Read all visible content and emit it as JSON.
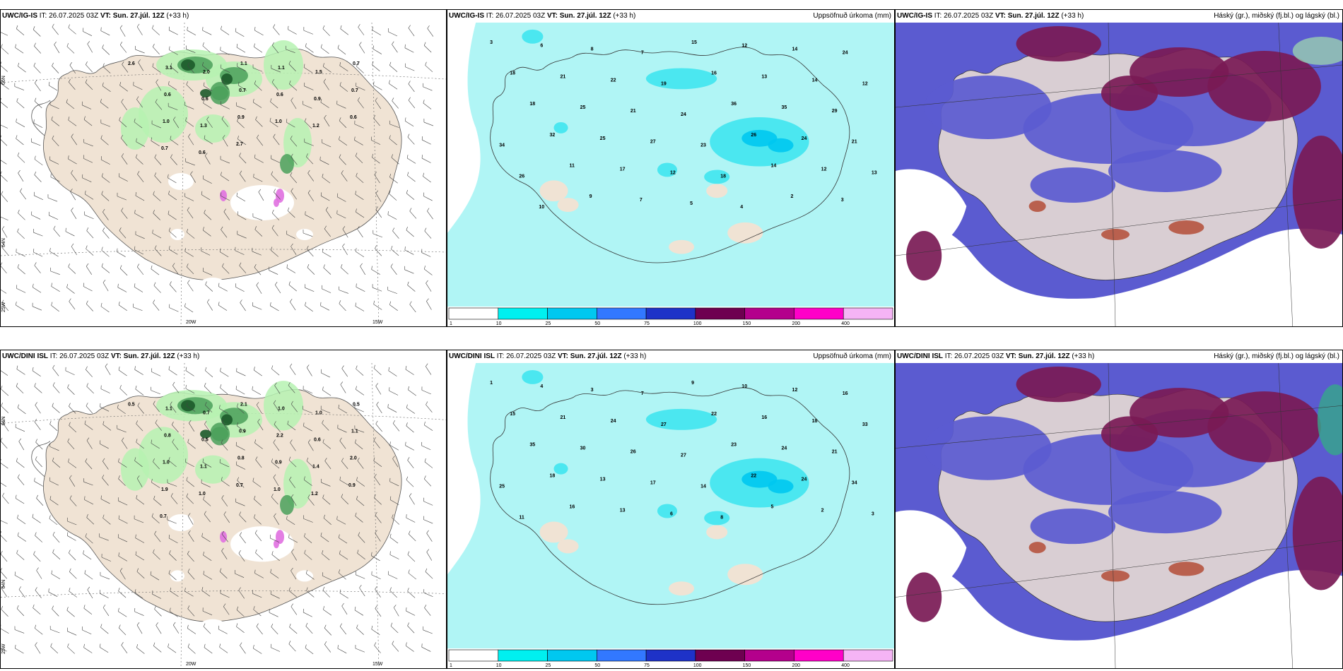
{
  "common": {
    "it_label": "IT:",
    "it_value": "26.07.2025 03Z",
    "vt_label": "VT:",
    "vt_value": "Sun. 27.júl. 12Z",
    "lead": "(+33 h)"
  },
  "rows": [
    {
      "model": "UWC/IG-IS"
    },
    {
      "model": "UWC/DINI ISL"
    }
  ],
  "panel_titles": {
    "precip": "Uppsöfnuð úrkoma (mm)",
    "cloud": "Háský (gr.), miðský (fj.bl.) og lágský (bl.)"
  },
  "axis_labels": {
    "lat_66": "66N",
    "lat_64": "64N",
    "lon_25": "25W",
    "lon_20": "20W",
    "lon_15": "15W"
  },
  "colorbar": {
    "ticks": [
      "1",
      "10",
      "25",
      "50",
      "75",
      "100",
      "150",
      "200",
      "400"
    ],
    "colors": [
      "#ffffff",
      "#00f0f0",
      "#00c8f0",
      "#3278ff",
      "#1e32c8",
      "#6e0050",
      "#b4008c",
      "#ff00c8",
      "#f5b4f5"
    ]
  },
  "wind_values_top": [
    "2.6",
    "3.1",
    "2.0",
    "1.1",
    "1.1",
    "1.5",
    "0.7",
    "0.6",
    "0.6",
    "0.7",
    "0.6",
    "0.9",
    "0.7",
    "1.0",
    "1.3",
    "0.9",
    "1.0",
    "1.2",
    "0.6",
    "0.7",
    "0.6",
    "2.7"
  ],
  "wind_values_bottom": [
    "0.5",
    "1.1",
    "0.7",
    "2.1",
    "1.0",
    "1.0",
    "0.5",
    "0.8",
    "0.5",
    "0.9",
    "2.2",
    "0.6",
    "1.1",
    "1.0",
    "1.1",
    "0.8",
    "0.9",
    "1.4",
    "2.0",
    "1.9",
    "1.0",
    "0.7",
    "1.0",
    "1.2",
    "0.9",
    "0.7"
  ],
  "precip_values_top": [
    "3",
    "6",
    "8",
    "7",
    "15",
    "12",
    "14",
    "24",
    "18",
    "21",
    "22",
    "19",
    "16",
    "13",
    "14",
    "12",
    "18",
    "25",
    "21",
    "24",
    "36",
    "35",
    "29",
    "34",
    "32",
    "25",
    "27",
    "23",
    "26",
    "24",
    "21",
    "26",
    "11",
    "17",
    "12",
    "18",
    "14",
    "12",
    "13",
    "10",
    "9",
    "7",
    "5",
    "4",
    "2",
    "3"
  ],
  "precip_values_bottom": [
    "1",
    "4",
    "3",
    "7",
    "9",
    "10",
    "12",
    "16",
    "15",
    "21",
    "24",
    "27",
    "22",
    "16",
    "18",
    "33",
    "35",
    "30",
    "26",
    "27",
    "23",
    "24",
    "21",
    "25",
    "18",
    "13",
    "17",
    "14",
    "22",
    "24",
    "34",
    "11",
    "16",
    "13",
    "6",
    "8",
    "5",
    "2",
    "3"
  ]
}
